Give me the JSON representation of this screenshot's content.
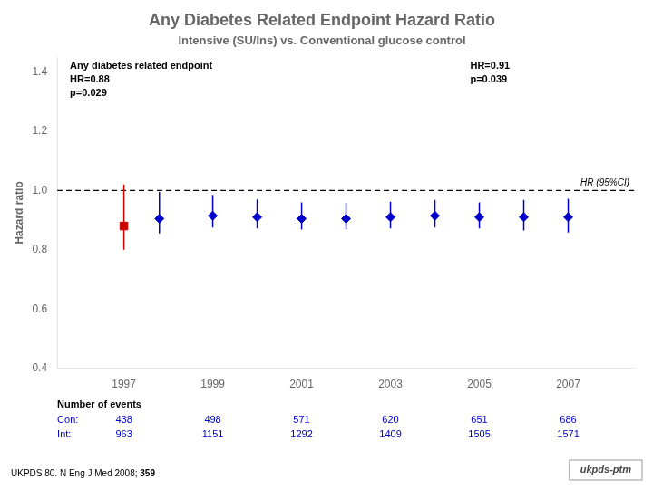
{
  "chart_data": {
    "type": "scatter",
    "title": "Any Diabetes Related Endpoint Hazard Ratio",
    "subtitle": "Intensive (SU/Ins) vs. Conventional glucose control",
    "ylabel": "Hazard ratio",
    "xlim": [
      1995.5,
      2008.5
    ],
    "xticks": [
      1997,
      1999,
      2001,
      2003,
      2005,
      2007
    ],
    "ylim": [
      0.4,
      1.45
    ],
    "yticks": [
      0.4,
      0.6,
      0.8,
      {
        "value": 1.0,
        "label": "1.0"
      },
      1.2,
      1.4
    ],
    "grid": false,
    "reference_line": {
      "value": 1.0,
      "label": "HR (95%CI)"
    },
    "series": [
      {
        "color": "#CC0000",
        "marker": "square",
        "x": [
          1997.0
        ],
        "values": [
          0.88
        ],
        "ci_low": [
          0.8
        ],
        "ci_high": [
          1.02
        ]
      },
      {
        "color": "#0000CC",
        "marker": "diamond",
        "x": [
          1997.8,
          1999.0,
          2000.0,
          2001.0,
          2002.0,
          2003.0,
          2004.0,
          2005.0,
          2006.0,
          2007.0
        ],
        "values": [
          0.905,
          0.915,
          0.91,
          0.905,
          0.905,
          0.91,
          0.915,
          0.91,
          0.91,
          0.91
        ],
        "ci_low": [
          0.855,
          0.875,
          0.872,
          0.868,
          0.868,
          0.872,
          0.875,
          0.872,
          0.865,
          0.858
        ],
        "ci_high": [
          0.995,
          0.985,
          0.97,
          0.96,
          0.958,
          0.962,
          0.968,
          0.96,
          0.968,
          0.972
        ]
      }
    ],
    "annotations": [
      [
        "Any diabetes related endpoint",
        "HR=0.88",
        "p=0.029"
      ],
      [
        "HR=0.91",
        "p=0.039"
      ]
    ],
    "events": {
      "title": "Number of events",
      "color": "#0000CC",
      "x": [
        1997,
        1999,
        2001,
        2003,
        2005,
        2007
      ],
      "series": [
        {
          "name": "Con:",
          "values": [
            438,
            498,
            571,
            620,
            651,
            686
          ]
        },
        {
          "name": "Int:",
          "values": [
            963,
            1151,
            1292,
            1409,
            1505,
            1571
          ]
        }
      ]
    },
    "citation": {
      "text": "UKPDS 80. N Eng J Med 2008; ",
      "bold": "359"
    },
    "logo": "ukpds-ptm"
  }
}
